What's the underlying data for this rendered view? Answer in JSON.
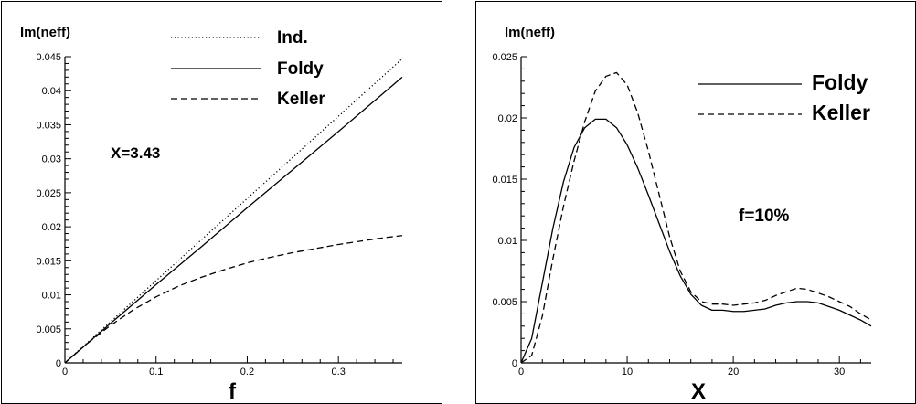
{
  "chart_data": [
    {
      "type": "line",
      "ylabel": "Im(neff)",
      "xlabel": "f",
      "annotation": "X=3.43",
      "xlim": [
        0,
        0.37
      ],
      "ylim": [
        0,
        0.045
      ],
      "xticks": [
        "0",
        "0.1",
        "0.2",
        "0.3"
      ],
      "xtick_values": [
        0,
        0.1,
        0.2,
        0.3
      ],
      "yticks": [
        "0",
        "0.005",
        "0.01",
        "0.015",
        "0.02",
        "0.025",
        "0.03",
        "0.035",
        "0.04",
        "0.045"
      ],
      "ytick_values": [
        0,
        0.005,
        0.01,
        0.015,
        0.02,
        0.025,
        0.03,
        0.035,
        0.04,
        0.045
      ],
      "grid": false,
      "legend_position": "top-right",
      "series": [
        {
          "name": "Ind.",
          "style": "dotted",
          "x": [
            0,
            0.37
          ],
          "y": [
            0,
            0.0447
          ]
        },
        {
          "name": "Foldy",
          "style": "solid",
          "x": [
            0,
            0.05,
            0.1,
            0.15,
            0.2,
            0.25,
            0.3,
            0.37
          ],
          "y": [
            0,
            0.0058,
            0.0115,
            0.0171,
            0.0228,
            0.0284,
            0.034,
            0.042
          ]
        },
        {
          "name": "Keller",
          "style": "dashed",
          "x": [
            0,
            0.025,
            0.05,
            0.075,
            0.1,
            0.125,
            0.15,
            0.175,
            0.2,
            0.225,
            0.25,
            0.275,
            0.3,
            0.325,
            0.35,
            0.37
          ],
          "y": [
            0,
            0.0029,
            0.0055,
            0.0078,
            0.0097,
            0.0113,
            0.0126,
            0.0137,
            0.0147,
            0.0155,
            0.0162,
            0.0168,
            0.0174,
            0.0179,
            0.0184,
            0.0187
          ]
        }
      ]
    },
    {
      "type": "line",
      "ylabel": "Im(neff)",
      "xlabel": "X",
      "annotation": "f=10%",
      "xlim": [
        0,
        33
      ],
      "ylim": [
        0,
        0.025
      ],
      "xticks": [
        "0",
        "10",
        "20",
        "30"
      ],
      "xtick_values": [
        0,
        10,
        20,
        30
      ],
      "yticks": [
        "0",
        "0.005",
        "0.01",
        "0.015",
        "0.02",
        "0.025"
      ],
      "ytick_values": [
        0,
        0.005,
        0.01,
        0.015,
        0.02,
        0.025
      ],
      "grid": false,
      "legend_position": "top-right",
      "series": [
        {
          "name": "Foldy",
          "style": "solid",
          "x": [
            0,
            1,
            2,
            3,
            4,
            5,
            6,
            7,
            8,
            9,
            10,
            11,
            12,
            13,
            14,
            15,
            16,
            17,
            18,
            19,
            20,
            21,
            22,
            23,
            24,
            25,
            26,
            27,
            28,
            29,
            30,
            31,
            32,
            33
          ],
          "y": [
            0,
            0.002,
            0.0065,
            0.011,
            0.0148,
            0.0176,
            0.0192,
            0.0199,
            0.0199,
            0.0192,
            0.0178,
            0.0159,
            0.0137,
            0.0114,
            0.0091,
            0.0071,
            0.0056,
            0.0047,
            0.0043,
            0.0043,
            0.0042,
            0.0042,
            0.0043,
            0.0044,
            0.0047,
            0.0049,
            0.005,
            0.005,
            0.0049,
            0.0046,
            0.0043,
            0.0039,
            0.0035,
            0.003
          ]
        },
        {
          "name": "Keller",
          "style": "dashed",
          "x": [
            0,
            1,
            2,
            3,
            4,
            5,
            6,
            7,
            8,
            9,
            10,
            11,
            12,
            13,
            14,
            15,
            16,
            17,
            18,
            19,
            20,
            21,
            22,
            23,
            24,
            25,
            26,
            27,
            28,
            29,
            30,
            31,
            32,
            33
          ],
          "y": [
            0,
            0.0006,
            0.0038,
            0.0085,
            0.0128,
            0.0165,
            0.0197,
            0.0222,
            0.0234,
            0.0237,
            0.0227,
            0.0204,
            0.0173,
            0.0138,
            0.0103,
            0.0075,
            0.0058,
            0.005,
            0.0048,
            0.0048,
            0.0047,
            0.0048,
            0.0049,
            0.0051,
            0.0055,
            0.0058,
            0.0061,
            0.006,
            0.0057,
            0.0054,
            0.005,
            0.0046,
            0.004,
            0.0035
          ]
        }
      ]
    }
  ]
}
